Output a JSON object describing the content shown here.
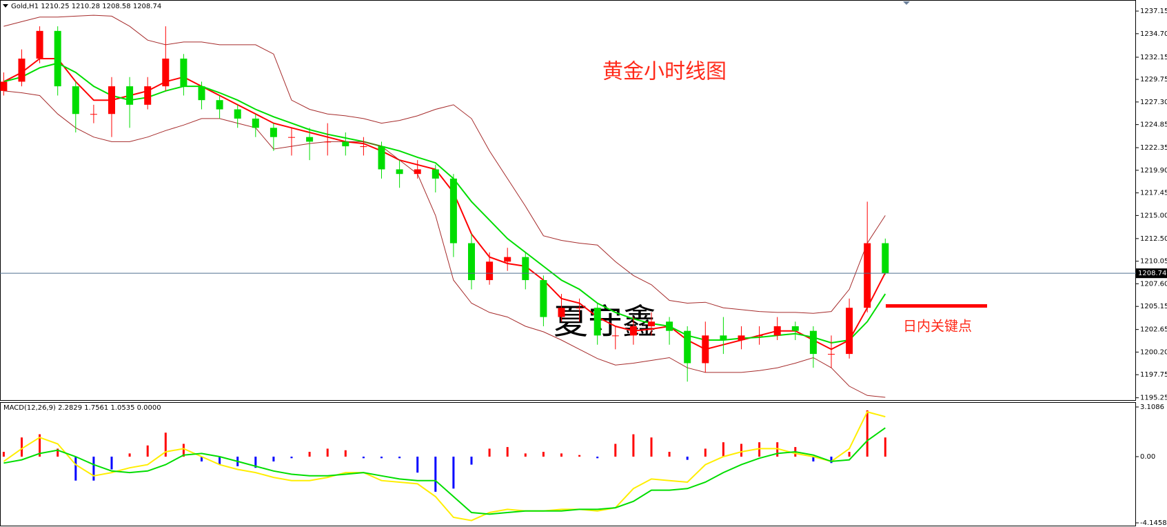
{
  "chart_data": [
    {
      "type": "candlestick",
      "header": "Gold,H1  1210.25 1210.28 1208.58 1208.74",
      "title": "黄金小时线图",
      "watermark": "夏守鑫",
      "annotation": "日内关键点",
      "key_level": 1205.2,
      "key_level_color": "#ff0000",
      "up_color": "#ff0000",
      "down_color": "#00dd00",
      "open": [
        1228.5,
        1229.5,
        1232,
        1235,
        1229,
        1226,
        1226,
        1229,
        1227,
        1229,
        1232,
        1229,
        1227.5,
        1226.5,
        1225.5,
        1224.5,
        1223.5,
        1223.5,
        1223,
        1223,
        1222.5,
        1222.5,
        1220,
        1219.5,
        1220,
        1219,
        1212,
        1208,
        1210,
        1210.5,
        1208,
        1204,
        1205,
        1205,
        1202,
        1202,
        1203,
        1203.5,
        1202.5,
        1199,
        1202,
        1201.5,
        1202,
        1202,
        1203,
        1202.5,
        1200,
        1200,
        1205,
        1212
      ],
      "high": [
        1230.5,
        1233,
        1235.5,
        1235.5,
        1229.5,
        1227,
        1230,
        1230,
        1230,
        1235.5,
        1232.5,
        1229.5,
        1228,
        1227,
        1226,
        1225,
        1224.5,
        1224.5,
        1225,
        1224,
        1223.5,
        1223,
        1221,
        1221,
        1220.5,
        1219.5,
        1213,
        1211,
        1211.5,
        1211,
        1208.5,
        1206.5,
        1206,
        1205.5,
        1203,
        1204,
        1204.5,
        1204,
        1203,
        1203.5,
        1204,
        1203,
        1203,
        1204,
        1203.5,
        1203,
        1202,
        1206,
        1216.5,
        1212.5
      ],
      "low": [
        1228,
        1229,
        1231.5,
        1228,
        1224,
        1225,
        1223.5,
        1224.5,
        1226.5,
        1228.5,
        1228,
        1226.5,
        1225.5,
        1224.5,
        1223.5,
        1222,
        1221.5,
        1221,
        1221.5,
        1221.5,
        1221.5,
        1219,
        1218,
        1219,
        1217.5,
        1210.5,
        1207,
        1207.5,
        1209,
        1207,
        1203,
        1203.5,
        1203.5,
        1201,
        1200.5,
        1201,
        1202,
        1201,
        1197,
        1198,
        1200,
        1200.5,
        1201,
        1201.5,
        1201.5,
        1198.5,
        1198.5,
        1199.5,
        1204.5,
        1208.58
      ],
      "close": [
        1229.5,
        1232,
        1235,
        1229,
        1226,
        1226,
        1229,
        1227,
        1229,
        1232,
        1229,
        1227.5,
        1226.5,
        1225.5,
        1224.5,
        1223.5,
        1223.5,
        1223,
        1223,
        1222.5,
        1222.5,
        1220,
        1219.5,
        1220,
        1219,
        1212,
        1208,
        1210,
        1210.5,
        1208,
        1204,
        1205,
        1205,
        1202,
        1202,
        1203,
        1203.5,
        1202.5,
        1199,
        1202,
        1201.5,
        1202,
        1202,
        1203,
        1202.5,
        1200,
        1200,
        1205,
        1212,
        1208.74
      ],
      "lines": [
        {
          "color": "#ff0000",
          "values": [
            1229.5,
            1230.5,
            1232,
            1232,
            1229.5,
            1227.5,
            1227.5,
            1228,
            1228.5,
            1229.5,
            1230,
            1229,
            1228,
            1227,
            1226,
            1225,
            1224.5,
            1224,
            1223.5,
            1223,
            1222.8,
            1222,
            1221,
            1220.5,
            1220,
            1217.5,
            1213,
            1210.5,
            1209.8,
            1209.5,
            1208,
            1206,
            1205.5,
            1204,
            1203,
            1202.5,
            1202.7,
            1203,
            1201.5,
            1200.5,
            1201,
            1201.5,
            1202,
            1202.5,
            1202.5,
            1201.5,
            1200.5,
            1201.5,
            1205,
            1208.8
          ]
        },
        {
          "color": "#00dd00",
          "values": [
            1229.5,
            1230,
            1231,
            1231.5,
            1230.5,
            1229,
            1228,
            1227.5,
            1227.8,
            1228.5,
            1229,
            1229,
            1228.3,
            1227.5,
            1226.5,
            1225.7,
            1225,
            1224.3,
            1223.8,
            1223.4,
            1223,
            1222.5,
            1222,
            1221.3,
            1220.7,
            1219,
            1216.5,
            1214.5,
            1212.5,
            1211,
            1209.5,
            1208,
            1207,
            1205.5,
            1204.5,
            1203.8,
            1203.3,
            1203,
            1202,
            1201.5,
            1201.5,
            1201.7,
            1201.8,
            1202,
            1202.2,
            1201.8,
            1201.2,
            1201.5,
            1203.5,
            1206.5
          ]
        },
        {
          "color": "#a52a2a",
          "values": [
            1235.5,
            1236,
            1236.5,
            1236.5,
            1236.6,
            1236.7,
            1236.6,
            1235.5,
            1234,
            1233.5,
            1233.8,
            1233.8,
            1233.5,
            1233.5,
            1233.5,
            1232.5,
            1227.5,
            1226.5,
            1226,
            1225.8,
            1225.5,
            1225,
            1225.3,
            1225.8,
            1226.5,
            1227,
            1225.5,
            1222,
            1219,
            1216,
            1212.8,
            1212.3,
            1212,
            1211.8,
            1210,
            1208.5,
            1207.5,
            1205.8,
            1205.5,
            1205.6,
            1205,
            1204.8,
            1204.6,
            1204.5,
            1204.5,
            1204.4,
            1204.6,
            1207,
            1212,
            1215
          ]
        },
        {
          "color": "#a52a2a",
          "values": [
            1228.5,
            1228.3,
            1228,
            1226,
            1224.5,
            1223.5,
            1223,
            1223,
            1223.5,
            1224.2,
            1224.8,
            1225.5,
            1225.5,
            1225,
            1224.5,
            1222.2,
            1222.5,
            1222.8,
            1223,
            1223,
            1223,
            1222.5,
            1221,
            1219.5,
            1215,
            1208,
            1205.5,
            1204.5,
            1204,
            1203,
            1202.4,
            1201.5,
            1200.5,
            1199.5,
            1198.8,
            1199,
            1199.3,
            1199.6,
            1198.5,
            1198,
            1198,
            1198,
            1198.2,
            1198.5,
            1199,
            1199.6,
            1198.5,
            1196.5,
            1195.5,
            1195.3
          ]
        }
      ],
      "last_price": 1208.74,
      "last_price_color": "#4f6f8f",
      "ylim": [
        1195.0,
        1238.35
      ],
      "yticks": [
        1237.15,
        {
          "value": 1234.7,
          "label": "1234.70"
        },
        {
          "value": 1232.15,
          "label": "1232.15"
        },
        1229.75,
        {
          "value": 1227.3,
          "label": "1227.30"
        },
        1224.85,
        1222.35,
        {
          "value": 1219.9,
          "label": "1219.90"
        },
        1217.45,
        {
          "value": 1215,
          "label": "1215.00"
        },
        {
          "value": 1212.5,
          "label": "1212.50"
        },
        {
          "value": 1210.05,
          "label": "1210.05"
        },
        {
          "value": 1207.6,
          "label": "1207.60"
        },
        1205.15,
        1202.65,
        {
          "value": 1200.2,
          "label": "1200.20"
        },
        1197.75,
        1195.25
      ]
    },
    {
      "type": "macd",
      "label": "MACD(12,26,9) 2.2829 1.7561 1.0535 0.0000",
      "pos_color": "#ff0000",
      "neg_color": "#0000ff",
      "histogram": [
        0.3,
        1.2,
        1.4,
        0.5,
        -1.5,
        -1.5,
        -0.8,
        0.2,
        0.7,
        1.5,
        0.8,
        -0.3,
        -0.5,
        -0.6,
        -0.7,
        -0.3,
        -0.1,
        0.3,
        0.5,
        0.4,
        -0.1,
        -0.1,
        -0.1,
        -1.0,
        -2.2,
        -2.0,
        -0.5,
        0.5,
        0.6,
        0.2,
        0.3,
        0.2,
        0.1,
        -0.1,
        0.8,
        1.4,
        1.2,
        0.3,
        -0.2,
        0.5,
        0.9,
        0.8,
        0.9,
        0.9,
        0.6,
        -0.3,
        -0.4,
        0.3,
        2.9,
        1.2
      ],
      "series": [
        {
          "color": "#ffee00",
          "values": [
            -0.3,
            0.5,
            1.2,
            0.8,
            -0.5,
            -1.2,
            -1.0,
            -0.7,
            -0.5,
            0.3,
            0.5,
            0.0,
            -0.5,
            -0.8,
            -1.0,
            -1.3,
            -1.5,
            -1.5,
            -1.3,
            -1.0,
            -1.0,
            -1.5,
            -1.6,
            -1.7,
            -2.5,
            -3.8,
            -4.0,
            -3.5,
            -3.3,
            -3.4,
            -3.4,
            -3.3,
            -3.3,
            -3.4,
            -3.2,
            -2.0,
            -1.4,
            -1.5,
            -1.6,
            -0.5,
            0.0,
            0.3,
            0.5,
            0.5,
            0.2,
            0.0,
            -0.3,
            0.5,
            2.8,
            2.5
          ]
        },
        {
          "color": "#00dd00",
          "values": [
            -0.4,
            -0.2,
            0.2,
            0.4,
            0.0,
            -0.5,
            -0.9,
            -1.0,
            -0.9,
            -0.5,
            0.1,
            0.2,
            0.0,
            -0.3,
            -0.6,
            -0.9,
            -1.1,
            -1.2,
            -1.2,
            -1.1,
            -1.0,
            -1.2,
            -1.4,
            -1.5,
            -1.5,
            -2.5,
            -3.5,
            -3.6,
            -3.5,
            -3.4,
            -3.4,
            -3.4,
            -3.3,
            -3.3,
            -3.2,
            -2.8,
            -2.1,
            -2.1,
            -2.0,
            -1.6,
            -1.0,
            -0.5,
            -0.1,
            0.2,
            0.3,
            0.1,
            -0.3,
            -0.2,
            1.0,
            1.8
          ]
        }
      ],
      "ylim": [
        -4.1458,
        3.1086
      ],
      "yticks": [
        3.1086,
        {
          "value": 0,
          "label": "0.00"
        },
        -4.1458
      ]
    }
  ]
}
